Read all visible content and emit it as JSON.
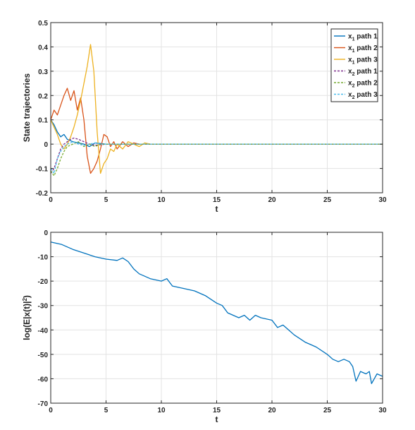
{
  "chart_data": [
    {
      "type": "line",
      "title": "",
      "xlabel": "t",
      "ylabel": "State trajectories",
      "xlim": [
        0,
        30
      ],
      "ylim": [
        -0.2,
        0.5
      ],
      "xticks": [
        0,
        5,
        10,
        15,
        20,
        25,
        30
      ],
      "yticks": [
        -0.2,
        -0.1,
        0,
        0.1,
        0.2,
        0.3,
        0.4,
        0.5
      ],
      "grid": true,
      "legend_position": "top-right",
      "series": [
        {
          "name": "x1 path 1",
          "var": "x",
          "sub": "1",
          "label": "path 1",
          "color": "#0072BD",
          "dash": "solid",
          "x": [
            0,
            0.3,
            0.6,
            0.9,
            1.2,
            1.5,
            2,
            2.5,
            3,
            3.5,
            4,
            5,
            6,
            7,
            8,
            9,
            10,
            30
          ],
          "y": [
            0.1,
            0.08,
            0.05,
            0.03,
            0.04,
            0.02,
            0.01,
            0.005,
            0,
            -0.01,
            0.005,
            0,
            0,
            0,
            0,
            0,
            0,
            0
          ]
        },
        {
          "name": "x1 path 2",
          "var": "x",
          "sub": "1",
          "label": "path 2",
          "color": "#D95319",
          "dash": "solid",
          "x": [
            0,
            0.3,
            0.6,
            0.9,
            1.2,
            1.5,
            1.8,
            2.1,
            2.4,
            2.7,
            3,
            3.3,
            3.6,
            3.9,
            4.2,
            4.5,
            4.8,
            5.1,
            5.4,
            5.7,
            6,
            6.5,
            7,
            7.5,
            8,
            9,
            10,
            30
          ],
          "y": [
            0.1,
            0.14,
            0.12,
            0.16,
            0.2,
            0.23,
            0.18,
            0.22,
            0.14,
            0.19,
            0.1,
            -0.05,
            -0.12,
            -0.1,
            -0.07,
            -0.02,
            0.04,
            0.03,
            -0.01,
            0.01,
            -0.02,
            0.01,
            -0.01,
            0.005,
            0,
            0,
            0,
            0
          ]
        },
        {
          "name": "x1 path 3",
          "var": "x",
          "sub": "1",
          "label": "path 3",
          "color": "#EDB120",
          "dash": "solid",
          "x": [
            0,
            0.3,
            0.6,
            0.9,
            1.2,
            1.5,
            1.8,
            2.1,
            2.4,
            2.7,
            3,
            3.3,
            3.6,
            3.9,
            4.2,
            4.5,
            4.8,
            5.1,
            5.4,
            5.7,
            6,
            6.5,
            7,
            7.5,
            8,
            8.5,
            9,
            10,
            30
          ],
          "y": [
            0.1,
            0.07,
            0.04,
            0.0,
            -0.02,
            0.0,
            0.03,
            0.07,
            0.12,
            0.18,
            0.25,
            0.32,
            0.41,
            0.3,
            0.05,
            -0.12,
            -0.08,
            -0.06,
            -0.02,
            -0.03,
            0.0,
            -0.02,
            0.01,
            0.0,
            -0.01,
            0.005,
            0,
            0,
            0
          ]
        },
        {
          "name": "x2 path 1",
          "var": "x",
          "sub": "2",
          "label": "path 1",
          "color": "#7E2F8E",
          "dash": "dashed",
          "x": [
            0,
            0.3,
            0.6,
            0.9,
            1.2,
            1.5,
            1.8,
            2.1,
            2.5,
            3,
            3.5,
            4,
            5,
            6,
            7,
            8,
            10,
            30
          ],
          "y": [
            -0.12,
            -0.1,
            -0.06,
            -0.02,
            0.0,
            0.01,
            0.02,
            0.025,
            0.02,
            0.01,
            0.0,
            -0.005,
            0.0,
            0,
            0,
            0,
            0,
            0
          ]
        },
        {
          "name": "x2 path 2",
          "var": "x",
          "sub": "2",
          "label": "path 2",
          "color": "#77AC30",
          "dash": "dashed",
          "x": [
            0,
            0.3,
            0.6,
            0.9,
            1.2,
            1.5,
            2,
            2.5,
            3,
            3.5,
            4,
            4.5,
            5,
            6,
            7,
            8,
            10,
            30
          ],
          "y": [
            -0.11,
            -0.13,
            -0.1,
            -0.06,
            -0.03,
            -0.01,
            0.0,
            0.01,
            -0.01,
            0.0,
            -0.01,
            0.0,
            0,
            0,
            0,
            0,
            0,
            0
          ]
        },
        {
          "name": "x2 path 3",
          "var": "x",
          "sub": "2",
          "label": "path 3",
          "color": "#4DBEEE",
          "dash": "dashed",
          "x": [
            0,
            0.3,
            0.6,
            0.9,
            1.2,
            1.5,
            2,
            2.5,
            3,
            3.5,
            4,
            4.5,
            5,
            6,
            7,
            8,
            10,
            30
          ],
          "y": [
            -0.1,
            -0.12,
            -0.06,
            -0.03,
            -0.01,
            0.0,
            0.01,
            0.0,
            -0.005,
            0.0,
            0.005,
            0.0,
            0,
            0,
            0,
            0,
            0,
            0
          ]
        }
      ]
    },
    {
      "type": "line",
      "title": "",
      "xlabel": "t",
      "ylabel": "log(E|x(t)|^2)",
      "xlim": [
        0,
        30
      ],
      "ylim": [
        -70,
        0
      ],
      "xticks": [
        0,
        5,
        10,
        15,
        20,
        25,
        30
      ],
      "yticks": [
        -70,
        -60,
        -50,
        -40,
        -30,
        -20,
        -10,
        0
      ],
      "grid": true,
      "series": [
        {
          "color": "#0072BD",
          "x": [
            0,
            1,
            2,
            3,
            4,
            5,
            6,
            6.5,
            7,
            7.5,
            8,
            8.5,
            9,
            10,
            10.5,
            11,
            12,
            13,
            14,
            15,
            15.5,
            16,
            17,
            17.5,
            18,
            18.5,
            19,
            20,
            20.5,
            21,
            21.5,
            22,
            23,
            23.5,
            24,
            25,
            25.5,
            26,
            26.5,
            27,
            27.3,
            27.6,
            28,
            28.5,
            28.8,
            29,
            29.5,
            30
          ],
          "y": [
            -4,
            -5,
            -7,
            -8.5,
            -10,
            -11,
            -11.5,
            -10.5,
            -12,
            -15,
            -17,
            -18,
            -19,
            -20,
            -19,
            -22,
            -23,
            -24,
            -26,
            -29,
            -30,
            -33,
            -35,
            -34,
            -36,
            -34,
            -35,
            -36,
            -39,
            -38,
            -40,
            -42,
            -45,
            -46,
            -47,
            -50,
            -52,
            -53,
            -52,
            -53,
            -55,
            -61,
            -57,
            -58,
            -57,
            -62,
            -58,
            -59
          ]
        }
      ]
    }
  ]
}
